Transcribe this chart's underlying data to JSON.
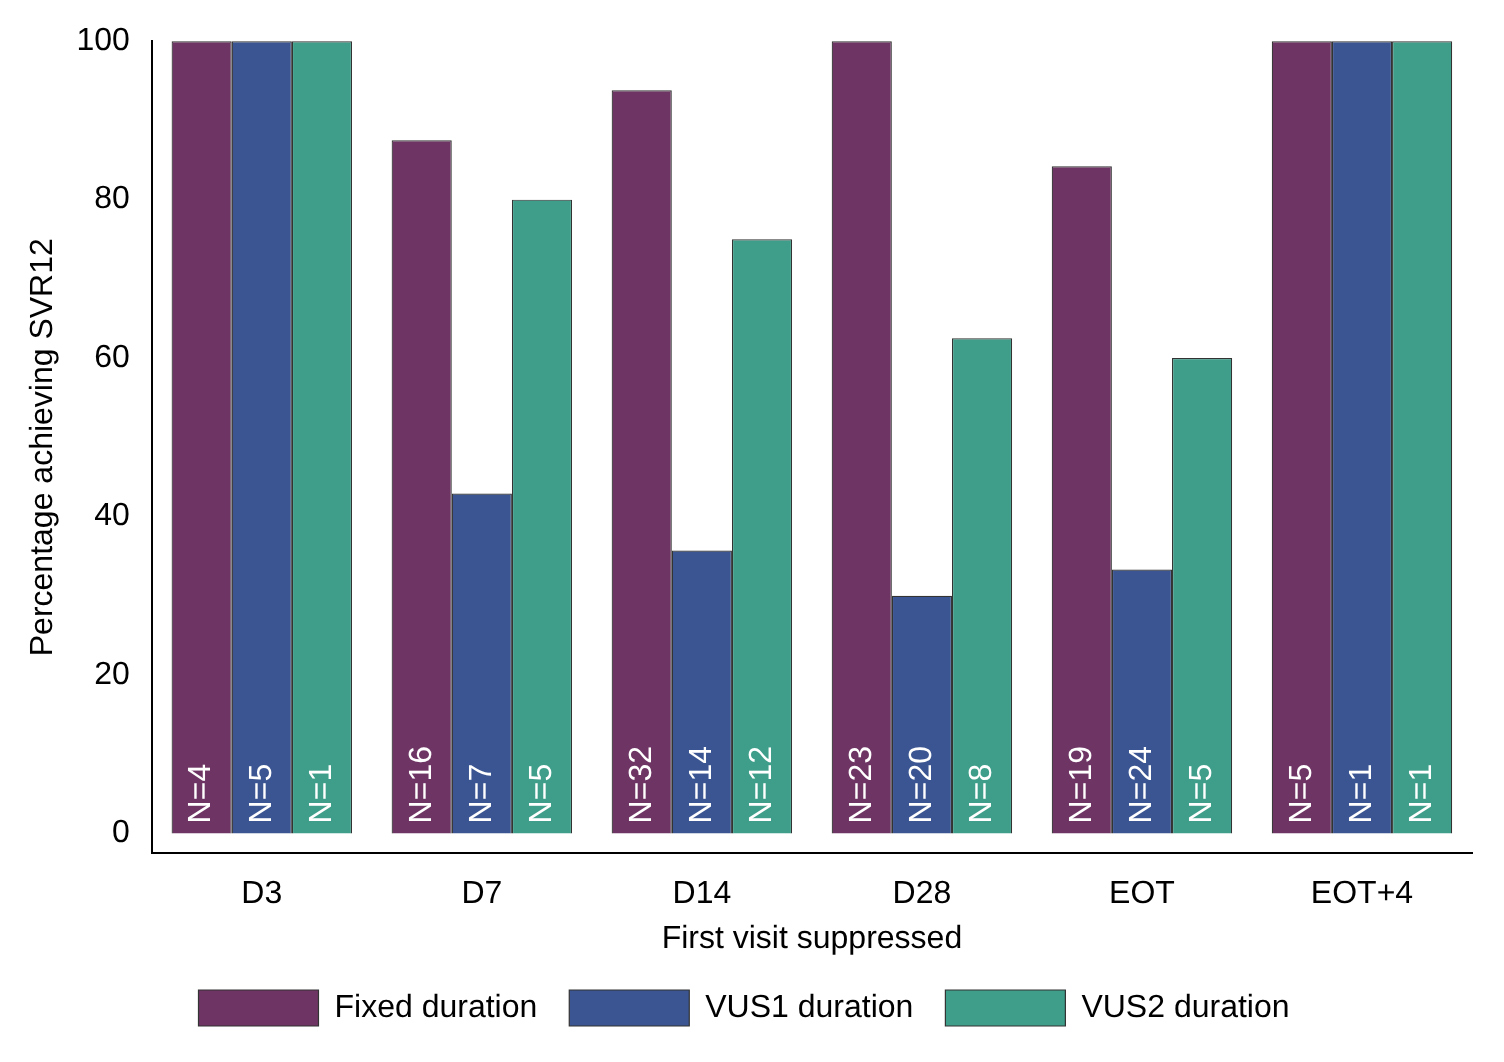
{
  "chart_data": {
    "type": "bar",
    "xlabel": "First visit suppressed",
    "ylabel": "Percentage achieving SVR12",
    "categories": [
      "D3",
      "D7",
      "D14",
      "D28",
      "EOT",
      "EOT+4"
    ],
    "series": [
      {
        "name": "Fixed duration",
        "color": "#6e3564",
        "values": [
          100,
          87.5,
          93.8,
          100,
          84.2,
          100
        ]
      },
      {
        "name": "VUS1 duration",
        "color": "#3a5591",
        "values": [
          100,
          42.9,
          35.7,
          30,
          33.3,
          100
        ]
      },
      {
        "name": "VUS2 duration",
        "color": "#3e9e8a",
        "values": [
          100,
          80,
          75,
          62.5,
          60,
          100
        ]
      }
    ],
    "annotations": [
      {
        "text": "N=4",
        "x": "D3",
        "y": 0
      },
      {
        "text": "N=5",
        "x": "D3",
        "y": 0
      },
      {
        "text": "N=1",
        "x": "D3",
        "y": 0
      },
      {
        "text": "N=16",
        "x": "D7",
        "y": 0
      },
      {
        "text": "N=7",
        "x": "D7",
        "y": 0
      },
      {
        "text": "N=5",
        "x": "D7",
        "y": 0
      },
      {
        "text": "N=32",
        "x": "D14",
        "y": 0
      },
      {
        "text": "N=14",
        "x": "D14",
        "y": 0
      },
      {
        "text": "N=12",
        "x": "D14",
        "y": 0
      },
      {
        "text": "N=23",
        "x": "D28",
        "y": 0
      },
      {
        "text": "N=20",
        "x": "D28",
        "y": 0
      },
      {
        "text": "N=8",
        "x": "D28",
        "y": 0
      },
      {
        "text": "N=19",
        "x": "EOT",
        "y": 0
      },
      {
        "text": "N=24",
        "x": "EOT",
        "y": 0
      },
      {
        "text": "N=5",
        "x": "EOT",
        "y": 0
      },
      {
        "text": "N=5",
        "x": "EOT+4",
        "y": 0
      },
      {
        "text": "N=1",
        "x": "EOT+4",
        "y": 0
      },
      {
        "text": "N=1",
        "x": "EOT+4",
        "y": 0
      }
    ],
    "ylim": [
      -2.5,
      100
    ],
    "yticks": [
      0,
      20,
      40,
      60,
      80,
      100
    ],
    "grid": false,
    "legend": "bottom"
  }
}
